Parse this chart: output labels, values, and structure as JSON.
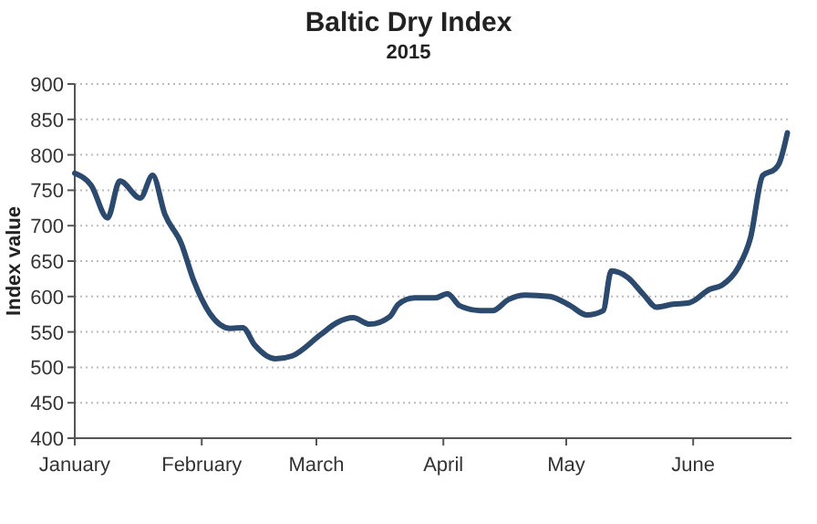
{
  "chart_data": {
    "type": "line",
    "title": "Baltic Dry Index",
    "subtitle": "2015",
    "ylabel": "Index value",
    "x": [
      "2015-01-01",
      "2015-01-05",
      "2015-01-09",
      "2015-01-12",
      "2015-01-17",
      "2015-01-20",
      "2015-01-23",
      "2015-01-27",
      "2015-01-30",
      "2015-02-03",
      "2015-02-08",
      "2015-02-11",
      "2015-02-14",
      "2015-02-19",
      "2015-02-23",
      "2015-03-02",
      "2015-03-06",
      "2015-03-10",
      "2015-03-14",
      "2015-03-19",
      "2015-03-21",
      "2015-03-25",
      "2015-03-30",
      "2015-04-02",
      "2015-04-05",
      "2015-04-10",
      "2015-04-13",
      "2015-04-17",
      "2015-04-21",
      "2015-04-27",
      "2015-05-02",
      "2015-05-06",
      "2015-05-10",
      "2015-05-12",
      "2015-05-16",
      "2015-05-20",
      "2015-05-23",
      "2015-05-27",
      "2015-05-31",
      "2015-06-05",
      "2015-06-08",
      "2015-06-12",
      "2015-06-15",
      "2015-06-18",
      "2015-06-21",
      "2015-06-22",
      "2015-06-24"
    ],
    "series": [
      {
        "color": "#2b4a6e",
        "values": [
          774,
          757,
          711,
          763,
          739,
          771,
          716,
          675,
          623,
          576,
          555,
          556,
          531,
          512,
          516,
          546,
          563,
          570,
          561,
          572,
          589,
          598,
          598,
          604,
          587,
          580,
          580,
          596,
          602,
          600,
          587,
          574,
          580,
          636,
          627,
          602,
          585,
          589,
          591,
          610,
          616,
          641,
          683,
          771,
          780,
          788,
          831
        ]
      }
    ],
    "xlim": [
      "2015-01-01",
      "2015-06-25"
    ],
    "xticks": [
      {
        "value": "2015-01-01",
        "label": "January"
      },
      {
        "value": "2015-02-01",
        "label": "February"
      },
      {
        "value": "2015-03-01",
        "label": "March"
      },
      {
        "value": "2015-04-01",
        "label": "April"
      },
      {
        "value": "2015-05-01",
        "label": "May"
      },
      {
        "value": "2015-06-01",
        "label": "June"
      }
    ],
    "ylim": [
      400,
      900
    ],
    "yticks": [
      400,
      450,
      500,
      550,
      600,
      650,
      700,
      750,
      800,
      850,
      900
    ],
    "grid": "y",
    "marker": "none",
    "line_style": "solid"
  }
}
